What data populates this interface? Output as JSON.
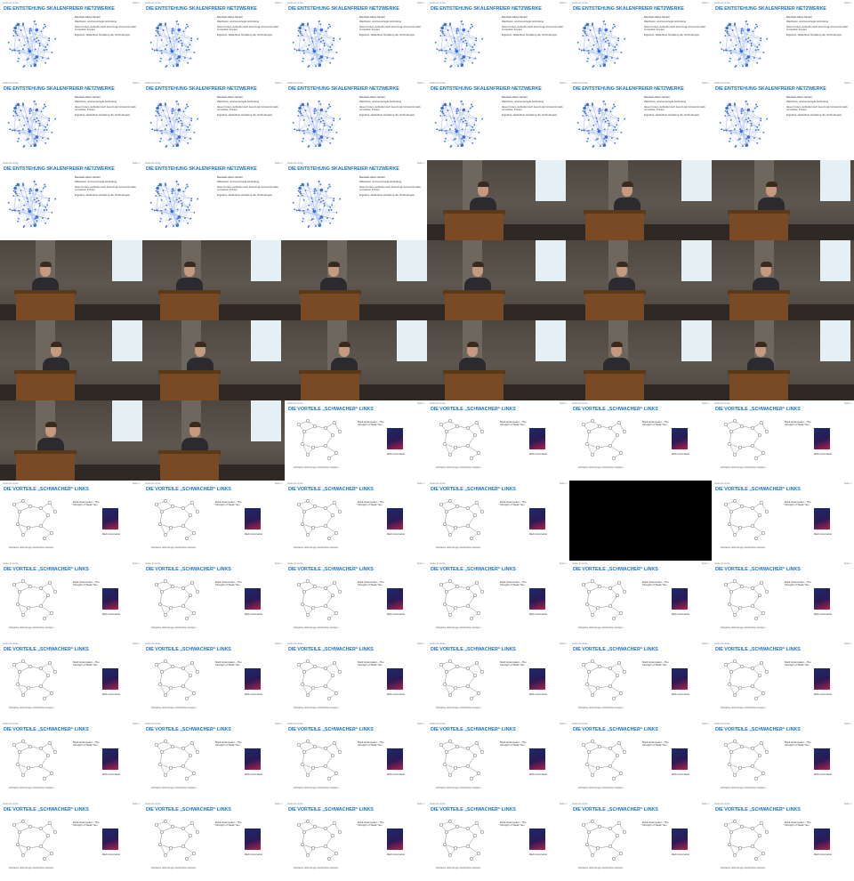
{
  "colors": {
    "slide_title": "#1b74c8",
    "network_node": "#3a6fd8",
    "photo_wall": "#5e574f",
    "lectern": "#7a4a24"
  },
  "slide_meta": {
    "left": "Andre de Grote",
    "right": "Seite 1"
  },
  "slide_a": {
    "title": "DIE ENTSTEHUNG SKALENFREIER NETZWERKE",
    "paragraphs": [
      "Barabási-Albert-Modell",
      "Wachstum und bevorzugte Anbindung",
      "Neue Knoten verbinden sich bevorzugt mit bereits stark vernetzten Knoten",
      "Ergebnis: skalenfreie Verteilung der Verbindungen"
    ]
  },
  "slide_b": {
    "title": "DIE VORTEILE „SCHWACHER“ LINKS",
    "citation": "Mark Granovetter – The Strength of Weak Ties",
    "author": "Mark Granovetter",
    "caption": "Schwache Verbindungen überbrücken Gruppen"
  },
  "tiles": [
    "slide_a",
    "slide_a",
    "slide_a",
    "slide_a",
    "slide_a",
    "slide_a",
    "slide_a",
    "slide_a",
    "slide_a",
    "slide_a",
    "slide_a",
    "slide_a",
    "slide_a",
    "slide_a",
    "slide_a",
    "photo",
    "photo",
    "photo",
    "photo",
    "photo",
    "photo",
    "photo",
    "photo",
    "photo",
    "photo",
    "photo",
    "photo",
    "photo",
    "photo",
    "photo",
    "photo",
    "photo",
    "slide_b",
    "slide_b",
    "slide_b",
    "slide_b",
    "slide_b",
    "slide_b",
    "slide_b",
    "slide_b",
    "empty",
    "slide_b",
    "slide_b",
    "slide_b",
    "slide_b",
    "slide_b",
    "slide_b",
    "slide_b",
    "slide_b",
    "slide_b",
    "slide_b",
    "slide_b",
    "slide_b",
    "slide_b",
    "slide_b",
    "slide_b",
    "slide_b",
    "slide_b",
    "slide_b",
    "slide_b",
    "slide_b",
    "slide_b",
    "slide_b",
    "slide_b",
    "slide_b",
    "slide_b"
  ]
}
